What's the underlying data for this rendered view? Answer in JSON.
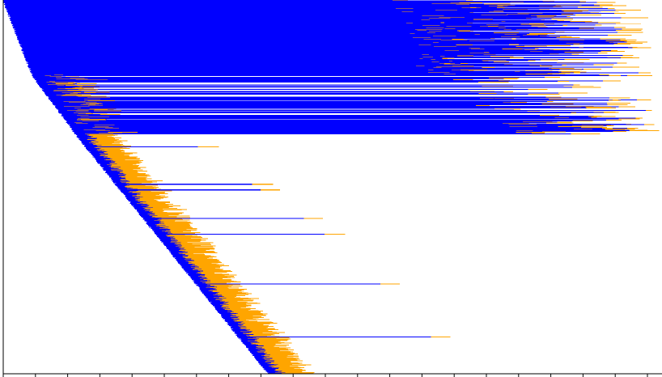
{
  "chart_data": {
    "type": "bar",
    "orientation": "horizontal",
    "stacked": true,
    "title": "",
    "xlabel": "",
    "ylabel": "",
    "grid": false,
    "legend": "none",
    "x_tick_count": 21,
    "colors": {
      "first_segment": "#0000ff",
      "second_segment": "#ffa500",
      "axis": "#000000"
    },
    "series": [
      {
        "name": "",
        "color": "#0000ff"
      },
      {
        "name": "",
        "color": "#ffa500"
      }
    ],
    "rows_count": 1200,
    "row_groups": [
      {
        "label": "",
        "rows": 240,
        "start_from": 0,
        "start_to": 36,
        "blue_min": 480,
        "blue_max": 760,
        "orange_min": 4,
        "orange_max": 34
      },
      {
        "label": "",
        "rows": 190,
        "start_from": 36,
        "start_to": 90,
        "blue_min": 0,
        "blue_max": 740,
        "orange_min": 6,
        "orange_max": 40
      },
      {
        "label": "",
        "rows": 770,
        "start_from": 90,
        "start_to": 330,
        "blue_min": 8,
        "blue_max": 22,
        "orange_min": 12,
        "orange_max": 42
      }
    ],
    "outlier_rows": [
      {
        "label": "",
        "row": 470,
        "blue": 140,
        "orange": 26
      },
      {
        "label": "",
        "row": 590,
        "blue": 170,
        "orange": 26
      },
      {
        "label": "",
        "row": 608,
        "blue": 175,
        "orange": 24
      },
      {
        "label": "",
        "row": 700,
        "blue": 200,
        "orange": 24
      },
      {
        "label": "",
        "row": 750,
        "blue": 210,
        "orange": 26
      },
      {
        "label": "",
        "row": 910,
        "blue": 230,
        "orange": 24
      },
      {
        "label": "",
        "row": 1080,
        "blue": 240,
        "orange": 24
      }
    ]
  }
}
